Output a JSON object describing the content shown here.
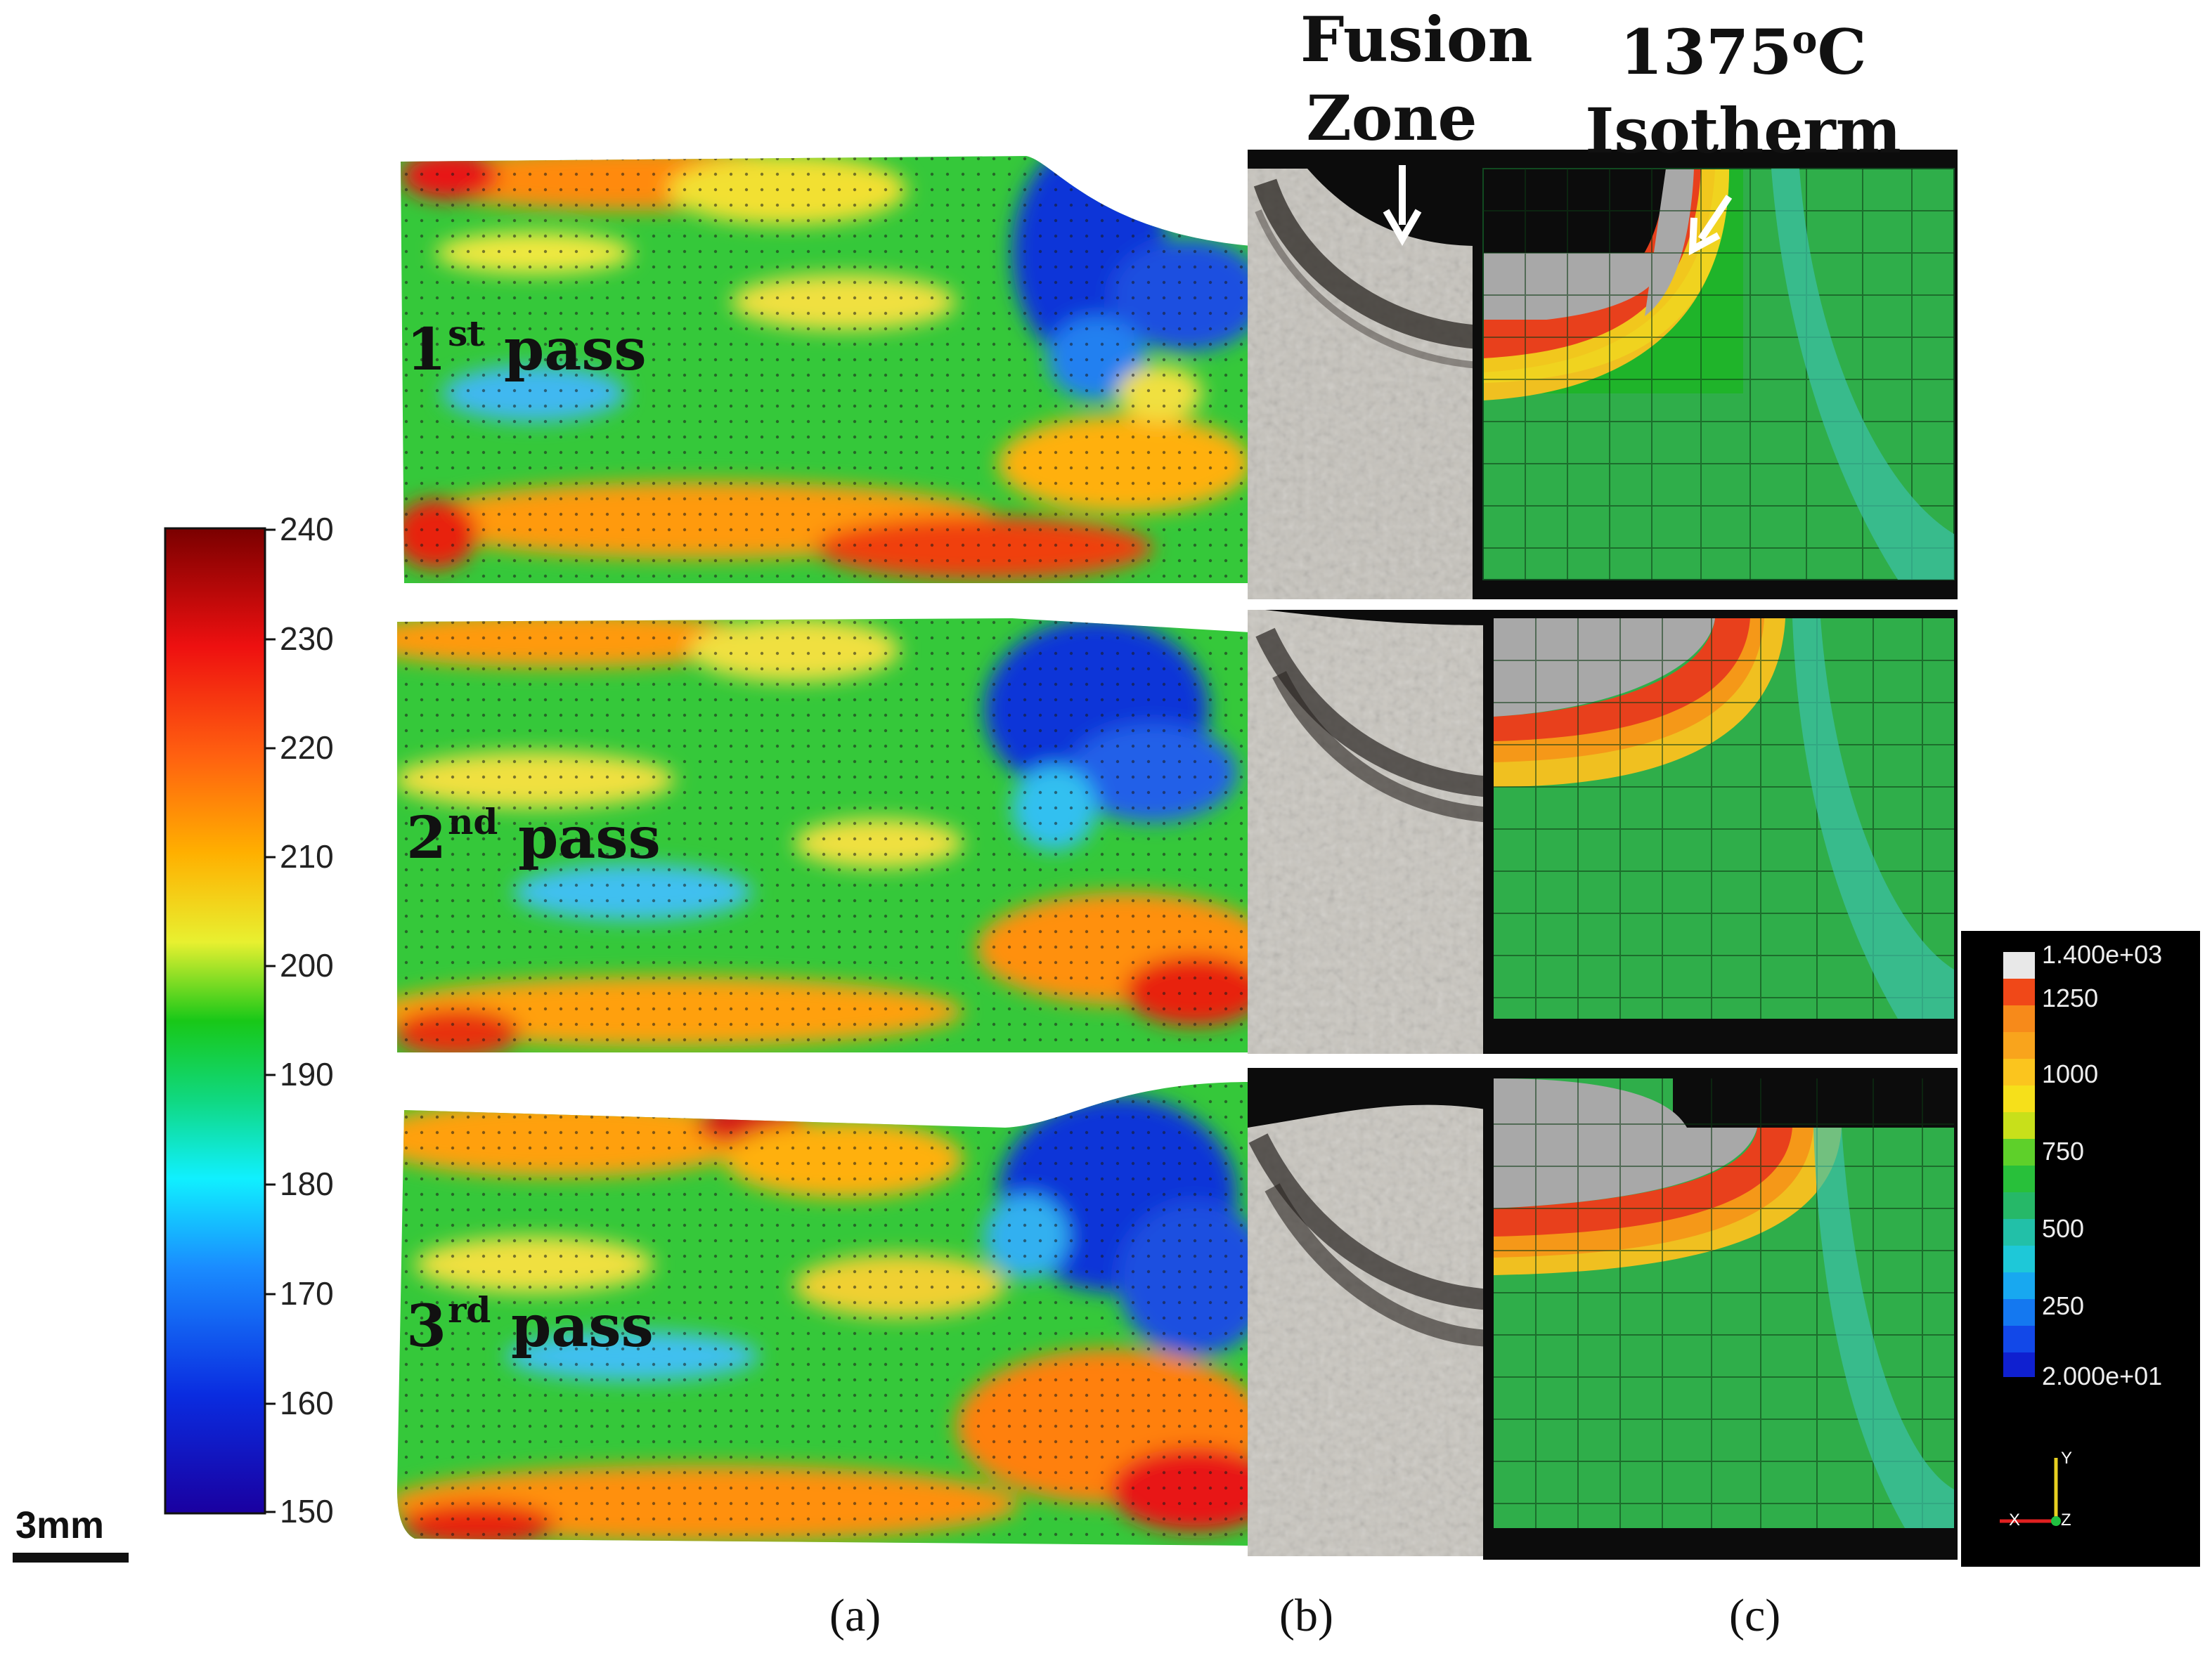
{
  "headings": {
    "fusion_zone": "Fusion Zone",
    "isotherm_line1": "1375",
    "isotherm_sup": "o",
    "isotherm_unit": "C",
    "isotherm_line2": "Isotherm"
  },
  "passes": [
    {
      "num": "1",
      "sup": "st",
      "word": "pass"
    },
    {
      "num": "2",
      "sup": "nd",
      "word": "pass"
    },
    {
      "num": "3",
      "sup": "rd",
      "word": "pass"
    }
  ],
  "hardness_colorbar": {
    "min": 150,
    "max": 240,
    "ticks": [
      "240",
      "230",
      "220",
      "210",
      "200",
      "190",
      "180",
      "170",
      "160",
      "150"
    ]
  },
  "scale_bar": {
    "label": "3mm"
  },
  "panel_labels": {
    "a": "(a)",
    "b": "(b)",
    "c": "(c)"
  },
  "temperature_legend": {
    "max_label": "1.400e+03",
    "labels": [
      "1250",
      "1000",
      "750",
      "500",
      "250"
    ],
    "min_label": "2.000e+01",
    "axes": {
      "y": "Y",
      "x": "X",
      "z": "Z"
    }
  },
  "colors": {
    "isotherm": "#e8401c",
    "arrow_fusion": "#ffffff",
    "arrow_isotherm": "#ffffff"
  }
}
